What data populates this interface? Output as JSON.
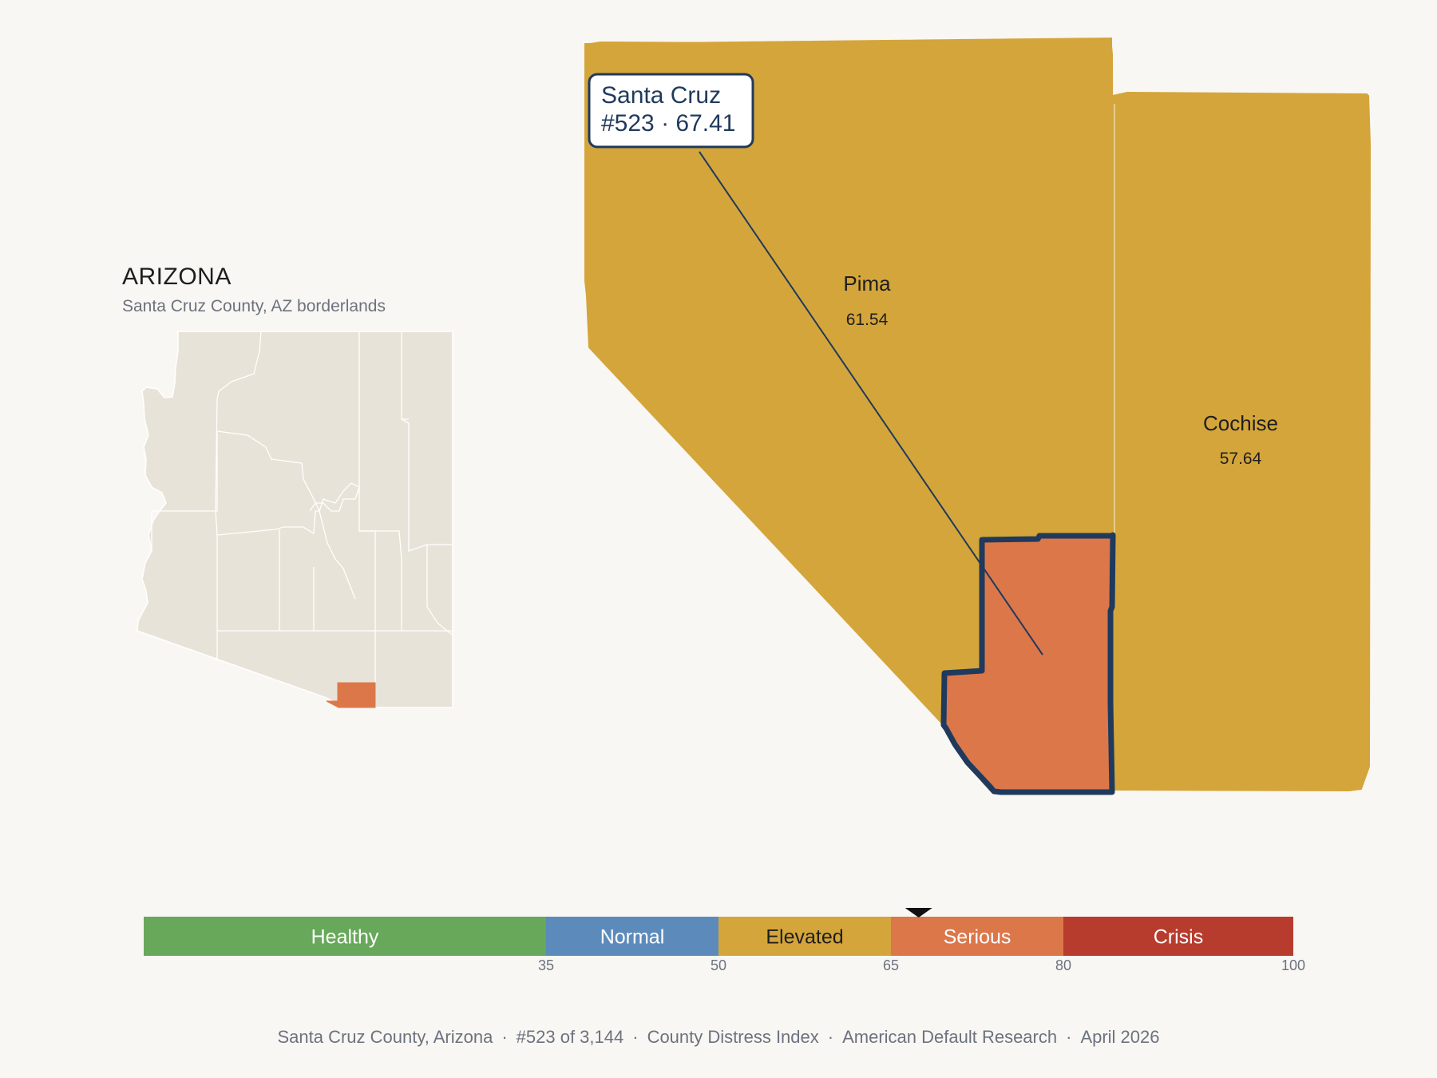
{
  "state": {
    "name": "ARIZONA",
    "subtitle": "Santa Cruz County, AZ borderlands"
  },
  "callout": {
    "county": "Santa Cruz",
    "detail": "#523 · 67.41"
  },
  "counties": [
    {
      "name": "Pima",
      "value": "61.54",
      "color": "#d4a53b"
    },
    {
      "name": "Cochise",
      "value": "57.64",
      "color": "#d4a53b"
    },
    {
      "name": "Santa Cruz",
      "value": "67.41",
      "color": "#dc774a",
      "highlighted": true
    }
  ],
  "scale": {
    "min": 0,
    "max": 100,
    "marker_value": 67.41,
    "segments": [
      {
        "label": "Healthy",
        "from": 0,
        "to": 35,
        "color": "#67a85a",
        "text_color": "#ffffff"
      },
      {
        "label": "Normal",
        "from": 35,
        "to": 50,
        "color": "#5c8bbb",
        "text_color": "#ffffff"
      },
      {
        "label": "Elevated",
        "from": 50,
        "to": 65,
        "color": "#d4a53b",
        "text_color": "#1e1e1e"
      },
      {
        "label": "Serious",
        "from": 65,
        "to": 80,
        "color": "#dc774a",
        "text_color": "#ffffff"
      },
      {
        "label": "Crisis",
        "from": 80,
        "to": 100,
        "color": "#b83c2d",
        "text_color": "#ffffff"
      }
    ],
    "ticks": [
      "35",
      "50",
      "65",
      "80",
      "100"
    ]
  },
  "footer": {
    "items": [
      "Santa Cruz County, Arizona",
      "#523 of 3,144",
      "County Distress Index",
      "American Default Research",
      "April 2026"
    ]
  },
  "colors": {
    "background": "#f9f7f3",
    "inset_fill": "#e8e3d8",
    "highlight_outline": "#1f3a5c"
  }
}
